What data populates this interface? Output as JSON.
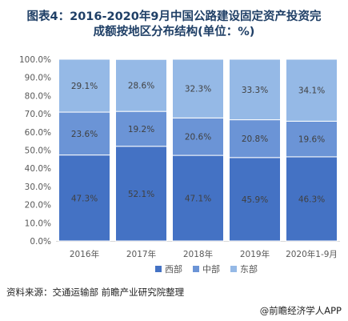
{
  "title_line1": "图表4：2016-2020年9月中国公路建设固定资产投资完",
  "title_line2": "成额按地区分布结构(单位：%)",
  "source": "资料来源：交通运输部 前瞻产业研究院整理",
  "brand": "@前瞻经济学人APP",
  "colors": {
    "西部": "#4472c4",
    "中部": "#6b94d6",
    "东部": "#95b9e6"
  },
  "chart_data": {
    "type": "bar",
    "stacked": true,
    "categories": [
      "2016年",
      "2017年",
      "2018年",
      "2019年",
      "2020年1-9月"
    ],
    "series": [
      {
        "name": "西部",
        "values": [
          47.3,
          52.1,
          47.1,
          45.9,
          46.3
        ]
      },
      {
        "name": "中部",
        "values": [
          23.6,
          19.2,
          20.6,
          20.8,
          19.6
        ]
      },
      {
        "name": "东部",
        "values": [
          29.1,
          28.6,
          32.3,
          33.3,
          34.1
        ]
      }
    ],
    "y_ticks": [
      "0.0%",
      "10.0%",
      "20.0%",
      "30.0%",
      "40.0%",
      "50.0%",
      "60.0%",
      "70.0%",
      "80.0%",
      "90.0%",
      "100.0%"
    ],
    "ylim": [
      0,
      100
    ],
    "legend_position": "bottom"
  }
}
